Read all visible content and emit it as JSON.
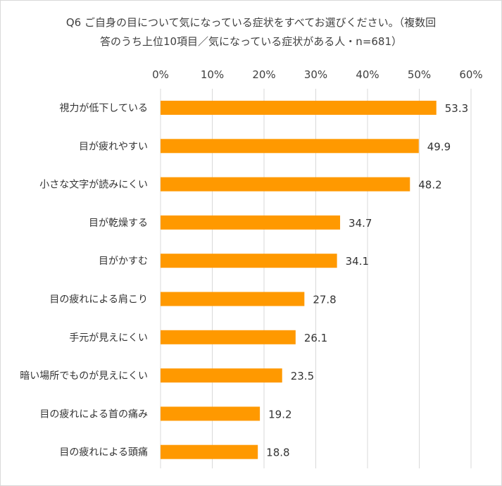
{
  "title": {
    "line1": "Q6 ご自身の目について気になっている症状をすべてお選びください。（複数回",
    "line2": "答のうち上位10項目／気になっている症状がある人・n=681）"
  },
  "colors": {
    "bar": "#FF9900",
    "gridline": "#D9D9D9",
    "text": "#404040"
  },
  "chart_data": {
    "type": "bar",
    "orientation": "horizontal",
    "title": "Q6 ご自身の目について気になっている症状をすべてお選びください。（複数回答のうち上位10項目／気になっている症状がある人・n=681）",
    "categories": [
      "視力が低下している",
      "目が疲れやすい",
      "小さな文字が読みにくい",
      "目が乾燥する",
      "目がかすむ",
      "目の疲れによる肩こり",
      "手元が見えにくい",
      "暗い場所でものが見えにくい",
      "目の疲れによる首の痛み",
      "目の疲れによる頭痛"
    ],
    "values": [
      53.3,
      49.9,
      48.2,
      34.7,
      34.1,
      27.8,
      26.1,
      23.5,
      19.2,
      18.8
    ],
    "value_labels": [
      "53.3",
      "49.9",
      "48.2",
      "34.7",
      "34.1",
      "27.8",
      "26.1",
      "23.5",
      "19.2",
      "18.8"
    ],
    "x_ticks": [
      "0%",
      "10%",
      "20%",
      "30%",
      "40%",
      "50%",
      "60%"
    ],
    "xlim": [
      0,
      60
    ],
    "x_axis_position": "top",
    "grid": true,
    "legend": "none"
  }
}
